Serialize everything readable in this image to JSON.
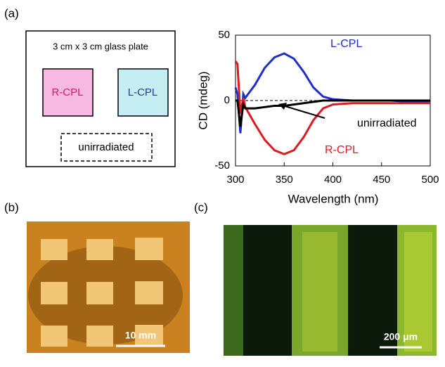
{
  "panels": {
    "a": "(a)",
    "b": "(b)",
    "c": "(c)"
  },
  "schematic": {
    "title": "3 cm x 3 cm glass plate",
    "left": "R-CPL",
    "right": "L-CPL",
    "bottom": "unirradiated"
  },
  "scale_bars": {
    "b": "10 mm",
    "c": "200 μm"
  },
  "chart_data": {
    "type": "line",
    "x_label": "Wavelength (nm)",
    "y_label": "CD (mdeg)",
    "x": [
      300,
      302,
      305,
      308,
      310,
      320,
      330,
      340,
      350,
      360,
      370,
      380,
      390,
      400,
      420,
      440,
      460,
      480,
      500
    ],
    "series": [
      {
        "name": "L-CPL",
        "color": "#1f2fc4",
        "values": [
          10,
          5,
          -25,
          5,
          2,
          12,
          25,
          33,
          36,
          32,
          22,
          10,
          3,
          1,
          0,
          0,
          0,
          -1,
          -1
        ]
      },
      {
        "name": "R-CPL",
        "color": "#e0191e",
        "values": [
          30,
          28,
          -10,
          2,
          -5,
          -18,
          -30,
          -38,
          -41,
          -38,
          -28,
          -15,
          -6,
          -3,
          -2,
          -2,
          -2,
          -2,
          -2
        ]
      },
      {
        "name": "unirradiated",
        "color": "#000000",
        "values": [
          0,
          0,
          -20,
          -3,
          -6,
          -6,
          -5,
          -4,
          -4,
          -3,
          -2,
          -1,
          0,
          0,
          0,
          0,
          0,
          0,
          0
        ]
      }
    ],
    "xlim": [
      300,
      500
    ],
    "xticks": [
      300,
      350,
      400,
      450,
      500
    ],
    "ylim": [
      -50,
      50
    ],
    "yticks": [
      -50,
      0,
      50
    ]
  }
}
